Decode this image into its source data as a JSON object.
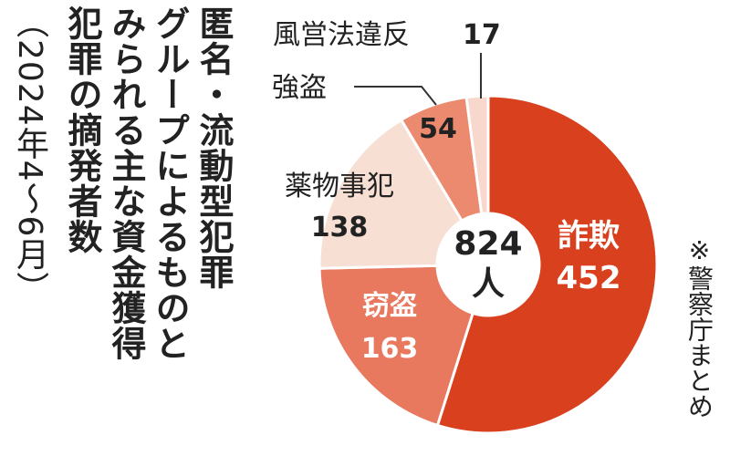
{
  "title_lines": [
    "匿名・流動型犯罪",
    "グループによるものと",
    "みられる主な資金獲得",
    "犯罪の摘発者数"
  ],
  "subtitle": "（2024年4～6月）",
  "source_note": "※警察庁まとめ",
  "center_label": {
    "value": "824",
    "unit": "人"
  },
  "colors": {
    "詐欺": "#d9411e",
    "窃盗": "#e8785e",
    "薬物事犯": "#f7dfd4",
    "強盗": "#eb8a6e",
    "風営法違反": "#f8d8cc"
  },
  "chart_data": {
    "type": "pie",
    "title": "匿名・流動型犯罪グループによるものとみられる主な資金獲得犯罪の摘発者数",
    "subtitle": "（2024年4～6月）",
    "total": 824,
    "total_label": "824人",
    "slices": [
      {
        "label": "詐欺",
        "value": 452
      },
      {
        "label": "窃盗",
        "value": 163
      },
      {
        "label": "薬物事犯",
        "value": 138
      },
      {
        "label": "強盗",
        "value": 54
      },
      {
        "label": "風営法違反",
        "value": 17
      }
    ]
  }
}
